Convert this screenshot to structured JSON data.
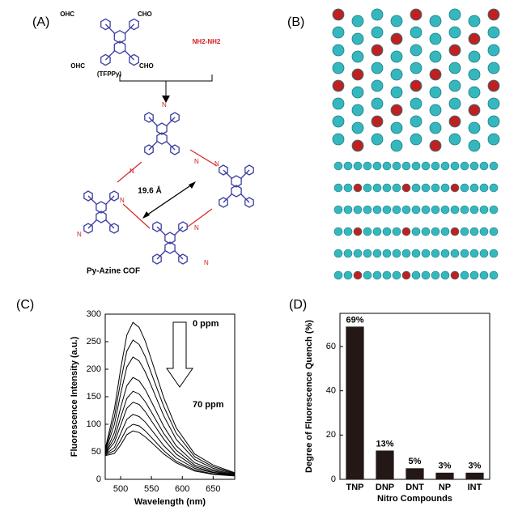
{
  "scheme": {
    "label": "(A)",
    "texts": [
      "OHC",
      "CHO",
      "OHC",
      "CHO",
      "(TFPPy)",
      "NH2-NH2",
      "19.6 Å",
      "Py-Azine COF"
    ],
    "atoms": [
      "N",
      "N",
      "N",
      "N",
      "N",
      "N",
      "N",
      "N"
    ]
  },
  "structure": {
    "label": "(B)"
  },
  "chart_data": [
    {
      "type": "line",
      "label": "(C)",
      "xlabel": "Wavelength (nm)",
      "ylabel": "Fluorescence Intensity (a.u.)",
      "annotations": [
        "0 ppm",
        "70 ppm"
      ],
      "x": [
        475,
        490,
        500,
        510,
        520,
        530,
        540,
        550,
        570,
        590,
        620,
        650,
        685
      ],
      "series": [
        {
          "color": "#000000",
          "values": [
            55,
            128,
            200,
            262,
            285,
            276,
            251,
            217,
            148,
            94,
            46,
            26,
            12
          ]
        },
        {
          "color": "#000000",
          "values": [
            52,
            114,
            177,
            233,
            253,
            245,
            223,
            192,
            132,
            84,
            41,
            23,
            11
          ]
        },
        {
          "color": "#000000",
          "values": [
            50,
            100,
            155,
            204,
            222,
            215,
            195,
            169,
            115,
            73,
            36,
            20,
            10
          ]
        },
        {
          "color": "#000000",
          "values": [
            48,
            85,
            130,
            170,
            185,
            179,
            163,
            141,
            96,
            61,
            30,
            17,
            9
          ]
        },
        {
          "color": "#000000",
          "values": [
            47,
            75,
            112,
            147,
            160,
            155,
            141,
            122,
            83,
            53,
            26,
            15,
            8
          ]
        },
        {
          "color": "#000000",
          "values": [
            46,
            67,
            98,
            129,
            140,
            136,
            123,
            106,
            73,
            46,
            23,
            13,
            8
          ]
        },
        {
          "color": "#000000",
          "values": [
            45,
            58,
            83,
            109,
            118,
            114,
            104,
            90,
            61,
            39,
            20,
            12,
            7
          ]
        },
        {
          "color": "#000000",
          "values": [
            44,
            52,
            71,
            92,
            100,
            97,
            88,
            76,
            52,
            33,
            17,
            10,
            7
          ]
        },
        {
          "color": "#000000",
          "values": [
            43,
            47,
            62,
            81,
            88,
            85,
            77,
            67,
            46,
            30,
            15,
            9,
            6
          ]
        }
      ],
      "xlim": [
        475,
        685
      ],
      "xticks": [
        500,
        550,
        600,
        650
      ],
      "ylim": [
        0,
        300
      ],
      "yticks": [
        0,
        50,
        100,
        150,
        200,
        250,
        300
      ]
    },
    {
      "type": "bar",
      "label": "(D)",
      "xlabel": "Nitro Compounds",
      "ylabel": "Degree of Fluorescence Quench (%)",
      "categories": [
        "TNP",
        "DNP",
        "DNT",
        "NP",
        "INT"
      ],
      "values": [
        69,
        13,
        5,
        3,
        3
      ],
      "value_labels": [
        "69%",
        "13%",
        "5%",
        "3%",
        "3%"
      ],
      "color": "#231815",
      "ylim": [
        0,
        75
      ],
      "yticks": [
        0,
        20,
        40,
        60
      ]
    }
  ]
}
